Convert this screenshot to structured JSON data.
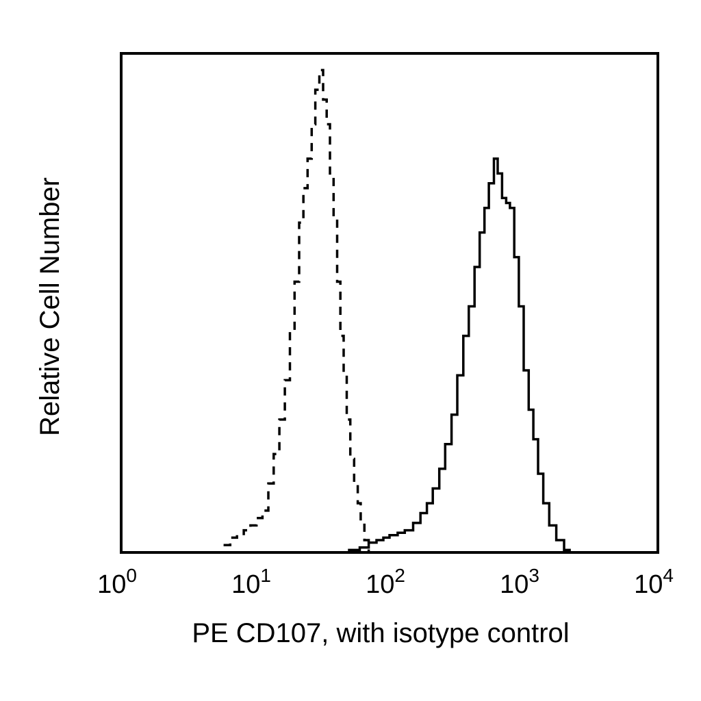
{
  "chart_data": {
    "type": "area",
    "title": "",
    "xlabel": "PE CD107, with isotype control",
    "ylabel": "Relative Cell Number",
    "x_scale": "log",
    "xlim": [
      1,
      10000
    ],
    "ylim": [
      0,
      1
    ],
    "grid": false,
    "x_ticks": [
      {
        "base": "10",
        "exp": "0"
      },
      {
        "base": "10",
        "exp": "1"
      },
      {
        "base": "10",
        "exp": "2"
      },
      {
        "base": "10",
        "exp": "3"
      },
      {
        "base": "10",
        "exp": "4"
      }
    ],
    "series": [
      {
        "style": "dashed",
        "x": [
          5.8,
          6.5,
          7.3,
          8.2,
          9.2,
          10.2,
          11.3,
          12.5,
          13.7,
          15.1,
          16.6,
          18.1,
          19.6,
          21.2,
          22.8,
          24.5,
          26.3,
          28.0,
          30.0,
          32.0,
          34.0,
          36.0,
          38.3,
          40.7,
          43.0,
          45.5,
          48.0,
          51.0,
          54.5,
          58.0,
          61.0,
          65.0,
          70.0
        ],
        "values": [
          0.015,
          0.03,
          0.035,
          0.045,
          0.055,
          0.07,
          0.085,
          0.14,
          0.2,
          0.27,
          0.35,
          0.45,
          0.55,
          0.67,
          0.74,
          0.8,
          0.87,
          0.94,
          0.98,
          0.92,
          0.87,
          0.77,
          0.68,
          0.55,
          0.44,
          0.36,
          0.27,
          0.19,
          0.14,
          0.1,
          0.06,
          0.025,
          0.0
        ]
      },
      {
        "style": "solid",
        "x": [
          40,
          50,
          60,
          70,
          80,
          90,
          100,
          115,
          130,
          150,
          170,
          190,
          210,
          235,
          260,
          290,
          320,
          355,
          390,
          430,
          470,
          510,
          550,
          600,
          640,
          690,
          740,
          790,
          850,
          920,
          1000,
          1090,
          1180,
          1280,
          1400,
          1550,
          1750,
          2000,
          2200
        ],
        "values": [
          0.0,
          0.005,
          0.01,
          0.02,
          0.025,
          0.03,
          0.035,
          0.04,
          0.045,
          0.06,
          0.08,
          0.1,
          0.13,
          0.17,
          0.22,
          0.28,
          0.36,
          0.44,
          0.5,
          0.58,
          0.65,
          0.7,
          0.75,
          0.8,
          0.77,
          0.72,
          0.71,
          0.7,
          0.6,
          0.5,
          0.37,
          0.29,
          0.23,
          0.16,
          0.1,
          0.055,
          0.025,
          0.005,
          0.0
        ]
      }
    ]
  }
}
